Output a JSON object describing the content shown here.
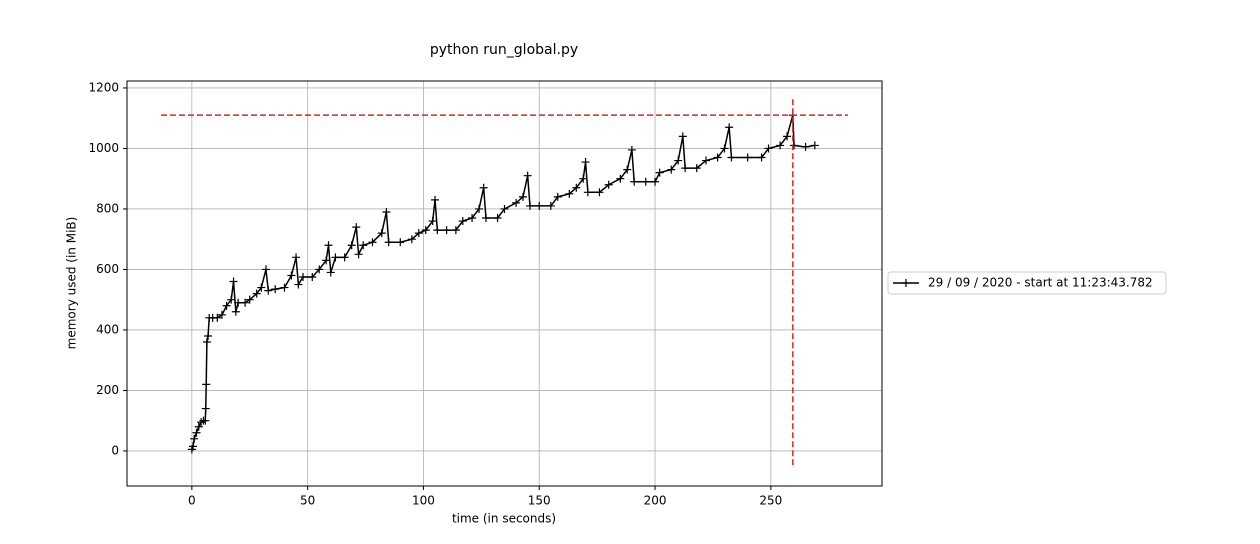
{
  "chart_data": {
    "type": "line",
    "title": "python run_global.py",
    "x_label": "time (in seconds)",
    "y_label": "memory used (in MiB)",
    "x": [
      0,
      0.5,
      1,
      2,
      3,
      4,
      5,
      5.8,
      6,
      6.2,
      6.5,
      7,
      7.5,
      9,
      11,
      13,
      15,
      17,
      18,
      19,
      20,
      23,
      25,
      28,
      30,
      32,
      33,
      36,
      40,
      43,
      45,
      46,
      48,
      52,
      55,
      58,
      59,
      60,
      62,
      66,
      69,
      71,
      72,
      74,
      78,
      82,
      84,
      85,
      90,
      95,
      98,
      101,
      104,
      105,
      106,
      110,
      114,
      117,
      121,
      124,
      126,
      127,
      132,
      135,
      140,
      143,
      145,
      146,
      150,
      155,
      158,
      163,
      166,
      169,
      170,
      171,
      176,
      180,
      185,
      188,
      190,
      191,
      196,
      200,
      202,
      207,
      210,
      212,
      213,
      218,
      222,
      227,
      230,
      232,
      233,
      240,
      246,
      249,
      254,
      257,
      259.5,
      260,
      265,
      269
    ],
    "series": [
      {
        "name": "29 / 09 / 2020 - start at 11:23:43.782",
        "color": "#000000",
        "values": [
          5,
          15,
          40,
          60,
          80,
          95,
          100,
          100,
          140,
          220,
          360,
          380,
          440,
          440,
          440,
          450,
          480,
          500,
          560,
          460,
          490,
          490,
          500,
          520,
          540,
          600,
          530,
          535,
          540,
          580,
          640,
          550,
          575,
          575,
          600,
          630,
          680,
          590,
          640,
          640,
          680,
          740,
          650,
          680,
          690,
          720,
          790,
          690,
          690,
          700,
          720,
          730,
          760,
          830,
          730,
          730,
          730,
          760,
          770,
          800,
          870,
          770,
          770,
          800,
          820,
          840,
          910,
          810,
          810,
          810,
          840,
          850,
          870,
          900,
          955,
          855,
          855,
          880,
          900,
          930,
          995,
          890,
          890,
          890,
          920,
          930,
          960,
          1040,
          935,
          935,
          960,
          970,
          1000,
          1070,
          970,
          970,
          970,
          1000,
          1010,
          1040,
          1110,
          1010,
          1005,
          1010
        ]
      }
    ],
    "reference_lines": {
      "y": 1110,
      "x": 259.5,
      "color": "#d62728"
    },
    "xlim": [
      -28,
      298
    ],
    "ylim": [
      -116,
      1223
    ],
    "xticks": [
      0,
      50,
      100,
      150,
      200,
      250
    ],
    "yticks": [
      0,
      200,
      400,
      600,
      800,
      1000,
      1200
    ],
    "grid": true,
    "legend": "right"
  }
}
